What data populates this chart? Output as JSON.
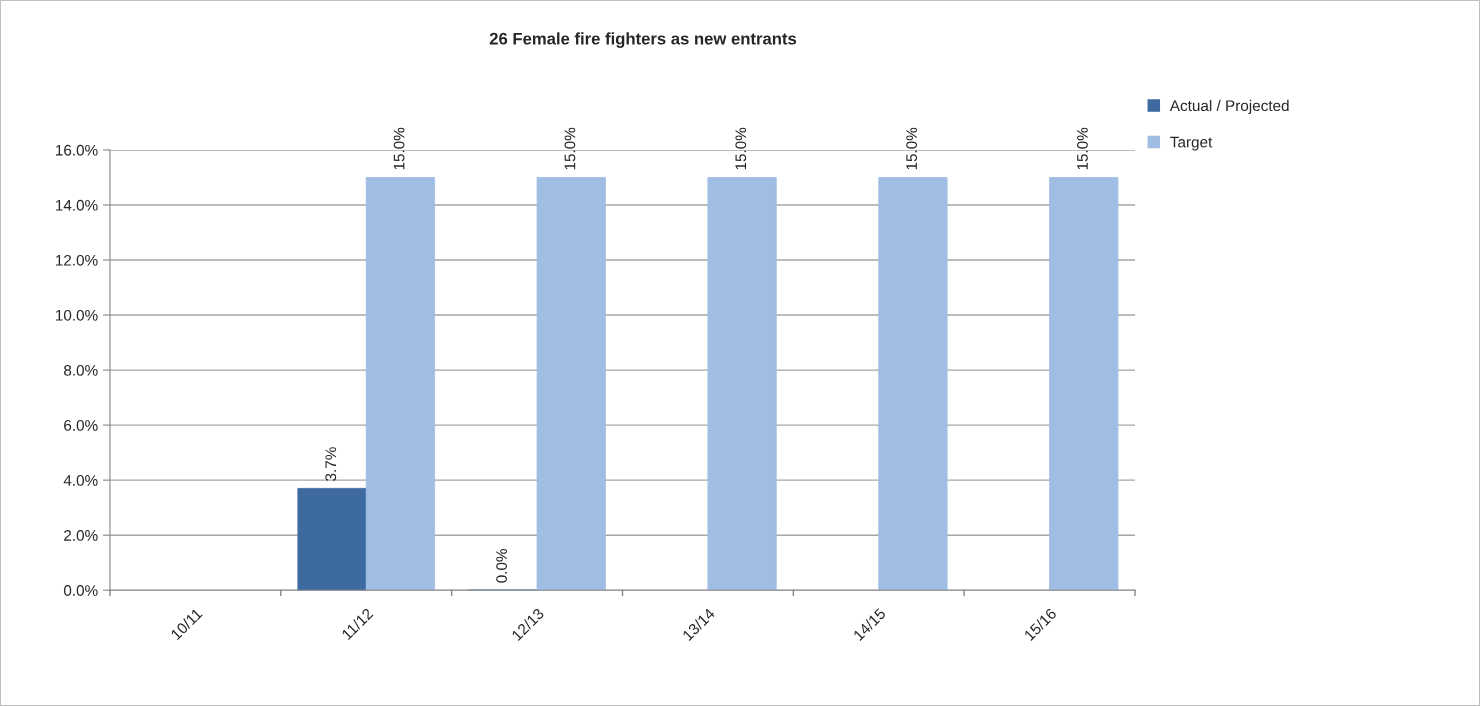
{
  "chart_data": {
    "type": "bar",
    "title": "26 Female fire fighters as new entrants",
    "categories": [
      "10/11",
      "11/12",
      "12/13",
      "13/14",
      "14/15",
      "15/16"
    ],
    "series": [
      {
        "name": "Actual / Projected",
        "color": "#3d6a9f",
        "values": [
          null,
          3.7,
          0.0,
          null,
          null,
          null
        ],
        "value_labels": [
          null,
          "3.7%",
          "0.0%",
          null,
          null,
          null
        ]
      },
      {
        "name": "Target",
        "color": "#a0bde3",
        "values": [
          null,
          15.0,
          15.0,
          15.0,
          15.0,
          15.0
        ],
        "value_labels": [
          null,
          "15.0%",
          "15.0%",
          "15.0%",
          "15.0%",
          "15.0%"
        ]
      }
    ],
    "ylim": [
      0,
      16
    ],
    "yticks": [
      {
        "value": 0,
        "label": "0.0%"
      },
      {
        "value": 2,
        "label": "2.0%"
      },
      {
        "value": 4,
        "label": "4.0%"
      },
      {
        "value": 6,
        "label": "6.0%"
      },
      {
        "value": 8,
        "label": "8.0%"
      },
      {
        "value": 10,
        "label": "10.0%"
      },
      {
        "value": 12,
        "label": "12.0%"
      },
      {
        "value": 14,
        "label": "14.0%"
      },
      {
        "value": 16,
        "label": "16.0%"
      }
    ],
    "grid": "y",
    "legend": "top right"
  }
}
